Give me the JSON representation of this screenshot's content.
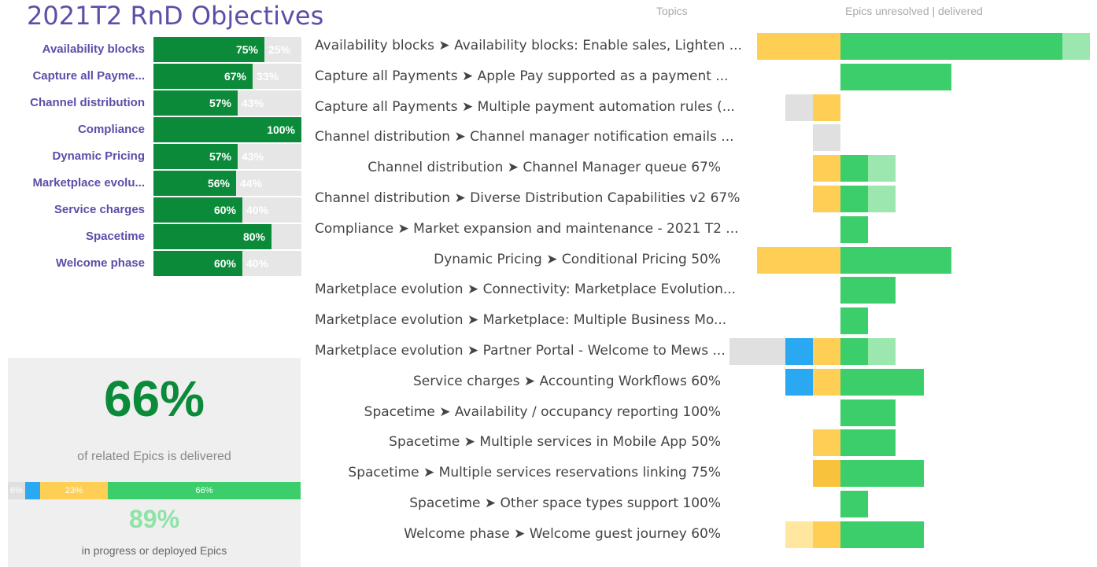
{
  "title": "2021T2 RnD Objectives",
  "colors": {
    "title": "#5b4fa8",
    "delivered_dark": "#0b8a3a",
    "remaining": "#e6e6e6",
    "unresolved_gray": "#e0e0e0",
    "in_progress_blue": "#2aa8f2",
    "yellow": "#ffce55",
    "yellow_dark": "#f9c23c",
    "yellow_light": "#ffe7a0",
    "green": "#3cce6a",
    "green_light": "#9ce6b0",
    "kpi2": "#8ee3a6"
  },
  "objectives": [
    {
      "label": "Availability blocks",
      "done": "75%",
      "remaining": "25%"
    },
    {
      "label": "Capture all Payme...",
      "done": "67%",
      "remaining": "33%"
    },
    {
      "label": "Channel distribution",
      "done": "57%",
      "remaining": "43%"
    },
    {
      "label": "Compliance",
      "done": "100%",
      "remaining": ""
    },
    {
      "label": "Dynamic Pricing",
      "done": "57%",
      "remaining": "43%"
    },
    {
      "label": "Marketplace evolu...",
      "done": "56%",
      "remaining": "44%"
    },
    {
      "label": "Service charges",
      "done": "60%",
      "remaining": "40%"
    },
    {
      "label": "Spacetime",
      "done": "80%",
      "remaining": ""
    },
    {
      "label": "Welcome phase",
      "done": "60%",
      "remaining": "40%"
    }
  ],
  "kpi": {
    "delivered_value": "66%",
    "delivered_caption": "of related Epics is delivered",
    "breakdown": [
      {
        "key": "unresolved",
        "share": 6,
        "label": "6%",
        "color": "#e0e0e0"
      },
      {
        "key": "in_progress",
        "share": 5,
        "label": "",
        "color": "#2aa8f2"
      },
      {
        "key": "deployed",
        "share": 23,
        "label": "23%",
        "color": "#ffce55"
      },
      {
        "key": "delivered",
        "share": 66,
        "label": "66%",
        "color": "#3cce6a"
      }
    ],
    "progress_value": "89%",
    "progress_caption": "in progress or deployed Epics"
  },
  "topics_header": "Topics",
  "epics_header": "Epics unresolved | delivered",
  "chart_data": {
    "type": "bar",
    "orientation": "horizontal-diverging",
    "title": "",
    "xlabel": "Epics unresolved | delivered",
    "ylabel": "Topics",
    "unit_note": "bar lengths in epic counts; unresolved to the left of baseline, delivered to the right",
    "categories": [
      "Availability blocks ➤ Availability blocks: Enable sales, Lighten ...",
      "Capture all Payments ➤ Apple Pay supported as a payment ...",
      "Capture all Payments ➤ Multiple payment automation rules (...",
      "Channel distribution ➤ Channel manager notification emails ...",
      "Channel distribution ➤ Channel Manager queue 67%",
      "Channel distribution ➤ Diverse Distribution Capabilities v2 67%",
      "Compliance ➤ Market expansion and maintenance - 2021 T2 ...",
      "Dynamic Pricing ➤ Conditional Pricing 50%",
      "Marketplace evolution ➤ Connectivity: Marketplace Evolution...",
      "Marketplace evolution ➤ Marketplace: Multiple Business Mo...",
      "Marketplace evolution ➤ Partner Portal - Welcome to Mews ...",
      "Service charges ➤ Accounting Workflows 60%",
      "Spacetime ➤ Availability / occupancy reporting 100%",
      "Spacetime ➤ Multiple services in Mobile App 50%",
      "Spacetime ➤ Multiple services reservations linking 75%",
      "Spacetime ➤ Other space types support 100%",
      "Welcome phase ➤ Welcome guest journey 60%"
    ],
    "series": [
      {
        "key": "unresolved",
        "color": "#e0e0e0",
        "side": "left",
        "values": [
          0,
          0,
          1,
          1,
          0,
          0,
          0,
          0,
          0,
          0,
          2,
          0,
          0,
          0,
          0,
          0,
          0
        ]
      },
      {
        "key": "in_progress",
        "color": "#2aa8f2",
        "side": "left",
        "values": [
          0,
          0,
          0,
          0,
          0,
          0,
          0,
          0,
          0,
          0,
          1,
          1,
          0,
          0,
          0,
          0,
          0
        ]
      },
      {
        "key": "deployed",
        "color": "#ffce55",
        "side": "left",
        "values": [
          3,
          0,
          1,
          0,
          1,
          1,
          0,
          3,
          0,
          0,
          1,
          1,
          0,
          1,
          1,
          0,
          1
        ]
      },
      {
        "key": "review",
        "color": "#ffe7a0",
        "side": "left",
        "values": [
          0,
          0,
          0,
          0,
          0,
          0,
          0,
          0,
          0,
          0,
          0,
          0,
          0,
          0,
          0,
          0,
          1
        ]
      },
      {
        "key": "delivered",
        "color": "#3cce6a",
        "side": "right",
        "values": [
          8,
          4,
          0,
          0,
          1,
          1,
          1,
          4,
          2,
          1,
          1,
          3,
          2,
          2,
          3,
          1,
          3
        ]
      },
      {
        "key": "delivered_other",
        "color": "#9ce6b0",
        "side": "right",
        "values": [
          1,
          0,
          0,
          0,
          1,
          1,
          0,
          0,
          0,
          0,
          1,
          0,
          0,
          0,
          0,
          0,
          0
        ]
      }
    ]
  }
}
